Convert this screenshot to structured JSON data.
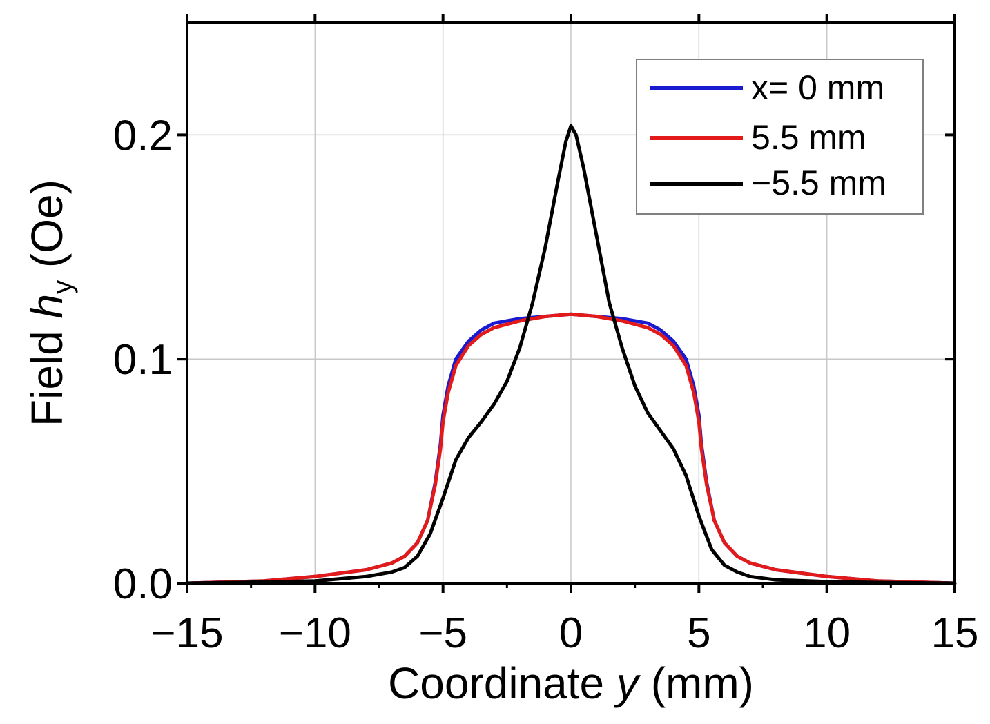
{
  "chart_data": {
    "type": "line",
    "title": "",
    "xlabel_prefix": "Coordinate ",
    "xlabel_var": "y",
    "xlabel_suffix": " (mm)",
    "ylabel_prefix": "Field ",
    "ylabel_var": "h",
    "ylabel_sub": "y",
    "ylabel_suffix": " (Oe)",
    "xlim": [
      -15,
      15
    ],
    "ylim": [
      0,
      0.25
    ],
    "grid": true,
    "legend_position": "top-right",
    "x_ticks": [
      {
        "value": -15,
        "label": "−15"
      },
      {
        "value": -10,
        "label": "−10"
      },
      {
        "value": -5,
        "label": "−5"
      },
      {
        "value": 0,
        "label": "0"
      },
      {
        "value": 5,
        "label": "5"
      },
      {
        "value": 10,
        "label": "10"
      },
      {
        "value": 15,
        "label": "15"
      }
    ],
    "y_ticks": [
      {
        "value": 0.0,
        "label": "0.0"
      },
      {
        "value": 0.1,
        "label": "0.1"
      },
      {
        "value": 0.2,
        "label": "0.2"
      }
    ],
    "series": [
      {
        "name": "x= 0 mm",
        "color": "#1a1ad0",
        "x": [
          -15,
          -12,
          -10,
          -8,
          -7,
          -6.5,
          -6,
          -5.6,
          -5.3,
          -5.1,
          -5.0,
          -4.8,
          -4.5,
          -4.0,
          -3.5,
          -3,
          -2,
          -1,
          0,
          1,
          2,
          3,
          3.5,
          4.0,
          4.5,
          4.8,
          5.0,
          5.1,
          5.3,
          5.6,
          6,
          6.5,
          7,
          8,
          10,
          12,
          15
        ],
        "y": [
          0.0,
          0.001,
          0.003,
          0.006,
          0.009,
          0.012,
          0.018,
          0.028,
          0.045,
          0.062,
          0.075,
          0.088,
          0.1,
          0.108,
          0.113,
          0.116,
          0.118,
          0.119,
          0.12,
          0.119,
          0.118,
          0.116,
          0.113,
          0.108,
          0.1,
          0.088,
          0.075,
          0.062,
          0.045,
          0.028,
          0.018,
          0.012,
          0.009,
          0.006,
          0.003,
          0.001,
          0.0
        ]
      },
      {
        "name": "5.5 mm",
        "color": "#e31a1a",
        "x": [
          -15,
          -12,
          -10,
          -8,
          -7,
          -6.5,
          -6,
          -5.6,
          -5.3,
          -5.1,
          -5.0,
          -4.8,
          -4.5,
          -4.0,
          -3.5,
          -3,
          -2,
          -1,
          0,
          1,
          2,
          3,
          3.5,
          4.0,
          4.5,
          4.8,
          5.0,
          5.1,
          5.3,
          5.6,
          6,
          6.5,
          7,
          8,
          10,
          12,
          15
        ],
        "y": [
          0.0,
          0.001,
          0.003,
          0.006,
          0.009,
          0.012,
          0.018,
          0.028,
          0.044,
          0.06,
          0.072,
          0.085,
          0.097,
          0.106,
          0.111,
          0.114,
          0.117,
          0.119,
          0.12,
          0.119,
          0.117,
          0.114,
          0.111,
          0.106,
          0.097,
          0.085,
          0.072,
          0.06,
          0.044,
          0.028,
          0.018,
          0.012,
          0.009,
          0.006,
          0.003,
          0.001,
          0.0
        ]
      },
      {
        "name": "−5.5 mm",
        "color": "#000000",
        "x": [
          -15,
          -12,
          -10,
          -8,
          -7,
          -6.5,
          -6,
          -5.5,
          -5.0,
          -4.5,
          -4.0,
          -3.5,
          -3.0,
          -2.5,
          -2.0,
          -1.5,
          -1.0,
          -0.5,
          -0.2,
          0,
          0.2,
          0.5,
          1.0,
          1.5,
          2.0,
          2.5,
          3.0,
          3.5,
          4.0,
          4.5,
          5.0,
          5.5,
          6.0,
          6.5,
          7,
          8,
          10,
          12,
          15
        ],
        "y": [
          0.0,
          0.0005,
          0.001,
          0.003,
          0.005,
          0.007,
          0.012,
          0.022,
          0.038,
          0.055,
          0.065,
          0.072,
          0.08,
          0.09,
          0.105,
          0.125,
          0.15,
          0.18,
          0.197,
          0.204,
          0.2,
          0.185,
          0.155,
          0.125,
          0.105,
          0.088,
          0.076,
          0.068,
          0.06,
          0.048,
          0.03,
          0.015,
          0.008,
          0.005,
          0.003,
          0.0015,
          0.0007,
          0.0003,
          0.0
        ]
      }
    ]
  }
}
